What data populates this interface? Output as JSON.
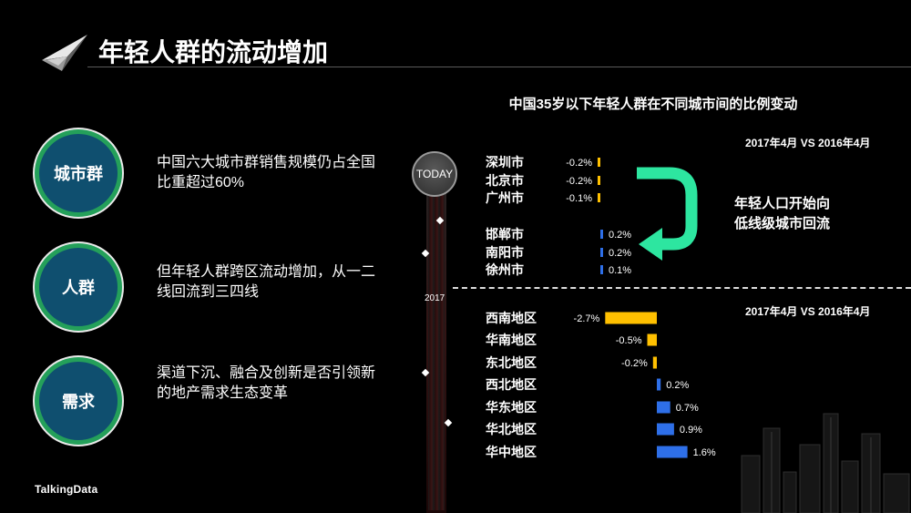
{
  "page": {
    "title": "年轻人群的流动增加",
    "brand": "TalkingData"
  },
  "left_panel": [
    {
      "label": "城市群",
      "text": "中国六大城市群销售规模仍占全国比重超过60%"
    },
    {
      "label": "人群",
      "text": "但年轻人群跨区流动增加，从一二线回流到三四线"
    },
    {
      "label": "需求",
      "text": "渠道下沉、融合及创新是否引领新的地产需求生态变革"
    }
  ],
  "timeline": {
    "today_label": "TODAY",
    "year_label": "2017"
  },
  "callout": {
    "line1": "年轻人口开始向",
    "line2": "低线级城市回流"
  },
  "colors": {
    "negative": "#ffc000",
    "positive": "#2e6fe8",
    "arrow": "#2de6a0",
    "bubble_fill": "#0f4f6f",
    "bubble_ring": "#24a05a"
  },
  "chart_data": [
    {
      "type": "bar",
      "orientation": "horizontal",
      "title": "中国35岁以下年轻人群在不同城市间的比例变动",
      "subtitle": "2017年4月 VS 2016年4月",
      "categories": [
        "深圳市",
        "北京市",
        "广州市",
        "邯郸市",
        "南阳市",
        "徐州市"
      ],
      "values": [
        -0.2,
        -0.2,
        -0.1,
        0.2,
        0.2,
        0.1
      ],
      "labels": [
        "-0.2%",
        "-0.2%",
        "-0.1%",
        "0.2%",
        "0.2%",
        "0.1%"
      ],
      "unit": "%"
    },
    {
      "type": "bar",
      "orientation": "horizontal",
      "subtitle": "2017年4月 VS 2016年4月",
      "categories": [
        "西南地区",
        "华南地区",
        "东北地区",
        "西北地区",
        "华东地区",
        "华北地区",
        "华中地区"
      ],
      "values": [
        -2.7,
        -0.5,
        -0.2,
        0.2,
        0.7,
        0.9,
        1.6
      ],
      "labels": [
        "-2.7%",
        "-0.5%",
        "-0.2%",
        "0.2%",
        "0.7%",
        "0.9%",
        "1.6%"
      ],
      "unit": "%"
    }
  ]
}
